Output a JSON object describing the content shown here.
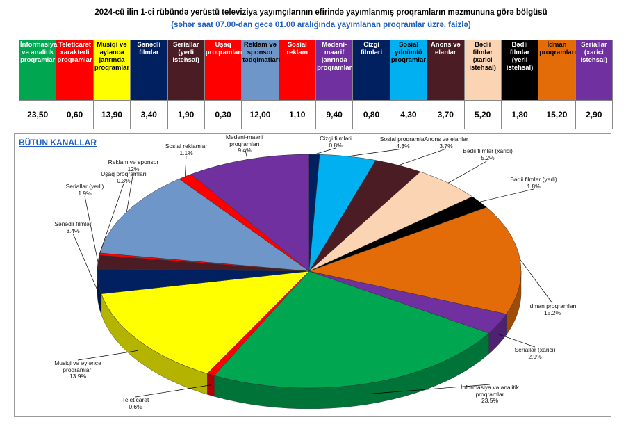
{
  "chart_data": {
    "type": "pie",
    "title": "2024-cü ilin 1-ci rübündə yerüstü  televiziya yayımçılarının efirində yayımlanmış proqramların məzmununa görə bölgüsü",
    "subtitle": "(səhər saat 07.00-dan gecə 01.00 aralığında yayımlanan proqramlar üzrə, faizlə)",
    "chart_label": "BÜTÜN  KANALLAR",
    "table": {
      "header": [
        "İnformasiya və analitik proqramlar",
        "Teleticarət xarakterli proqramlar",
        "Musiqi və əyləncə janrında proqramlar",
        "Sənədli filmlər",
        "Seriallar (yerli istehsal)",
        "Uşaq proqramları",
        "Reklam və sponsor tədqimatları",
        "Sosial reklam",
        "Mədəni-maarif janrında proqramlar",
        "Cizgi filmləri",
        "Sosial yönümlü proqramlar",
        "Anons və elanlar",
        "Bədii filmlər (xarici istehsal)",
        "Bədii filmlər (yerli istehsal)",
        "İdman proqramları",
        "Seriallar (xarici istehsal)"
      ],
      "cells": [
        "23,50",
        "0,60",
        "13,90",
        "3,40",
        "1,90",
        "0,30",
        "12,00",
        "1,10",
        "9,40",
        "0,80",
        "4,30",
        "3,70",
        "5,20",
        "1,80",
        "15,20",
        "2,90"
      ]
    },
    "categories": [
      "İnformasiya və analitik proqramlar",
      "Teleticarət",
      "Musiqi və əyləncə proqramları",
      "Sənədli filmlər",
      "Seriallar (yerli)",
      "Uşaq proqramları",
      "Reklam və sponsor",
      "Sosial reklamlar",
      "Mədəni-maarif proqramları",
      "Cizgi filmləri",
      "Sosial proqramlar",
      "Anons və elanlar",
      "Bədii filmlər (xarici)",
      "Bədii filmlər (yerli)",
      "İdman proqramları",
      "Seriallar (xarici)"
    ],
    "values": [
      23.5,
      0.6,
      13.9,
      3.4,
      1.9,
      0.3,
      12,
      1.1,
      9.4,
      0.8,
      4.3,
      3.7,
      5.2,
      1.8,
      15.2,
      2.9
    ],
    "value_labels": [
      "23.5%",
      "0.6%",
      "13.9%",
      "3.4%",
      "1.9%",
      "0.3%",
      "12%",
      "1.1%",
      "9.4%",
      "0.8%",
      "4.3%",
      "3.7%",
      "5.2%",
      "1.8%",
      "15.2%",
      "2.9%"
    ],
    "colors": [
      "#00a650",
      "#ff0000",
      "#ffff00",
      "#002060",
      "#4b1c24",
      "#ff0000",
      "#6f96c8",
      "#ff0000",
      "#7030a0",
      "#002060",
      "#00b0f0",
      "#4b1c24",
      "#fbd4b4",
      "#000000",
      "#e36c09",
      "#7030a0"
    ]
  }
}
